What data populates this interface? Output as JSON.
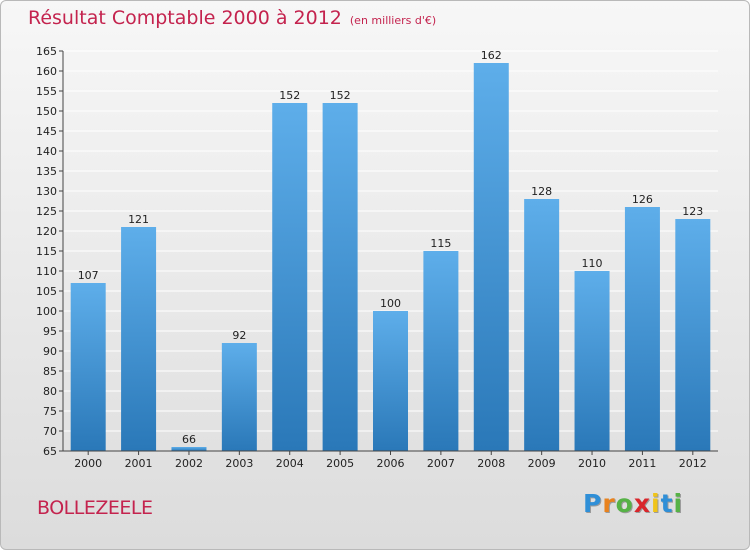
{
  "page": {
    "title": "Résultat Comptable 2000 à 2012",
    "subtitle": "(en milliers d'€)",
    "town": "BOLLEZEELE",
    "logo": {
      "letters": [
        "P",
        "r",
        "o",
        "x",
        "i",
        "t",
        "i"
      ],
      "colors": [
        "#2f8fd7",
        "#e8821e",
        "#56b246",
        "#d9262b",
        "#f0c419",
        "#2f8fd7",
        "#56b246"
      ]
    }
  },
  "colors": {
    "bar_light": "#5eaeea",
    "bar_dark": "#2a78b8",
    "grid": "#ffffff",
    "axis": "#444444",
    "text": "#222222"
  },
  "chart_data": {
    "type": "bar",
    "title": "Résultat Comptable 2000 à 2012",
    "subtitle": "(en milliers d'€)",
    "xlabel": "",
    "ylabel": "",
    "ylim": [
      65,
      165
    ],
    "ytick_step": 5,
    "grid": true,
    "categories": [
      "2000",
      "2001",
      "2002",
      "2003",
      "2004",
      "2005",
      "2006",
      "2007",
      "2008",
      "2009",
      "2010",
      "2011",
      "2012"
    ],
    "values": [
      107,
      121,
      66,
      92,
      152,
      152,
      100,
      115,
      162,
      128,
      110,
      126,
      123
    ]
  }
}
